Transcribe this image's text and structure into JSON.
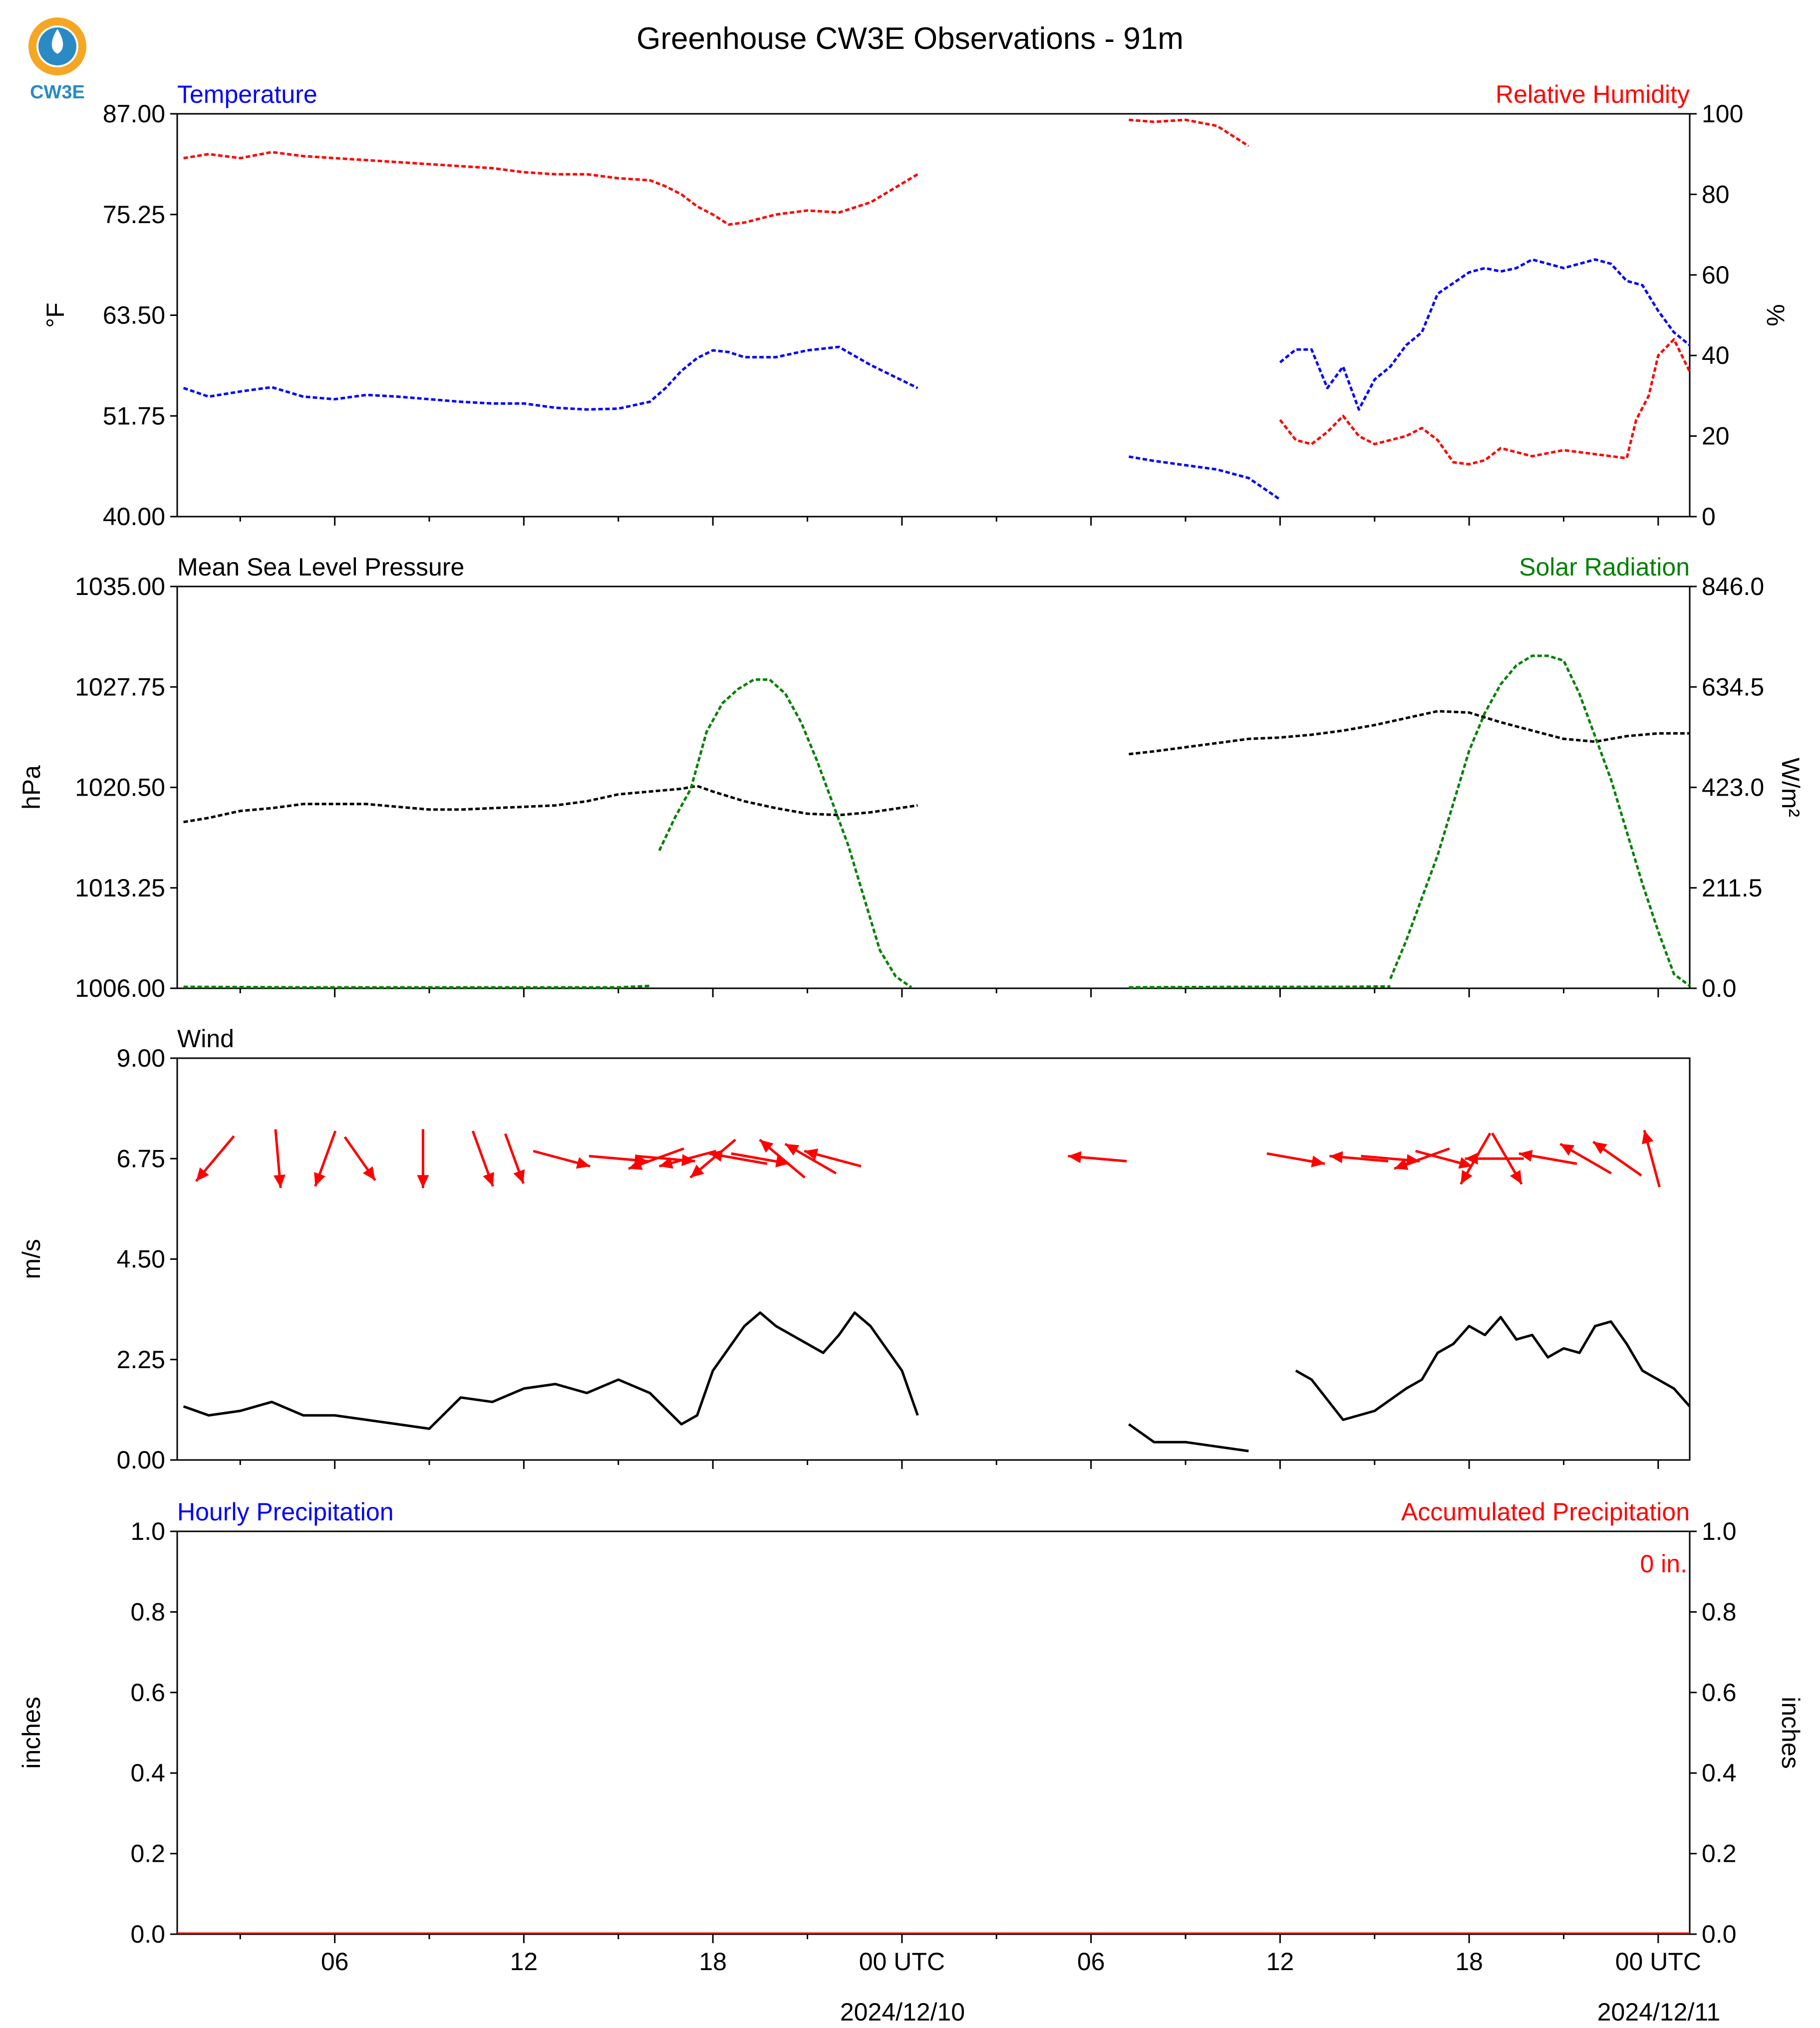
{
  "title": "Greenhouse CW3E Observations - 91m",
  "logo_text": "CW3E",
  "colors": {
    "blue": "#0000ff",
    "red": "#ff0000",
    "green": "#008000",
    "black": "#000000",
    "logo_orange": "#f5a623",
    "logo_blue": "#2a8ac4"
  },
  "x_axis": {
    "ticks": [
      "06",
      "12",
      "18",
      "00 UTC",
      "06",
      "12",
      "18",
      "00 UTC"
    ],
    "tick_hours": [
      6,
      12,
      18,
      24,
      30,
      36,
      42,
      48
    ],
    "minor_hour_step": 3,
    "dates": [
      "2024/12/10",
      "2024/12/11"
    ],
    "date_hours": [
      24,
      48
    ],
    "range_hours": [
      1,
      49
    ]
  },
  "chart_data": [
    {
      "type": "line",
      "panel": "temperature",
      "left_title": "Temperature",
      "right_title": "Relative Humidity",
      "left_ylabel": "°F",
      "right_ylabel": "%",
      "left_ylim": [
        40,
        87
      ],
      "left_ticks": [
        "87.00",
        "75.25",
        "63.50",
        "51.75",
        "40.00"
      ],
      "right_ylim": [
        0,
        100
      ],
      "right_ticks": [
        "100",
        "80",
        "60",
        "40",
        "20",
        "0"
      ],
      "series": [
        {
          "name": "Temperature",
          "axis": "left",
          "color": "#0000ff",
          "segments": [
            {
              "x": [
                1.2,
                2,
                3,
                4,
                5,
                6,
                7,
                8,
                9,
                10,
                11,
                12,
                13,
                14,
                15,
                16,
                16.5,
                17,
                17.5,
                18,
                18.5,
                19,
                20,
                21,
                22,
                23,
                24.5
              ],
              "y": [
                55.0,
                54.0,
                54.6,
                55.1,
                54.0,
                53.7,
                54.2,
                54.0,
                53.7,
                53.4,
                53.2,
                53.2,
                52.7,
                52.5,
                52.6,
                53.4,
                55.0,
                57.0,
                58.5,
                59.4,
                59.2,
                58.6,
                58.6,
                59.4,
                59.8,
                57.7,
                55.0
              ]
            },
            {
              "x": [
                31.2,
                32,
                33,
                34,
                35,
                36
              ],
              "y": [
                47.0,
                46.5,
                46.0,
                45.5,
                44.5,
                42.0
              ]
            },
            {
              "x": [
                36.0,
                36.5,
                37,
                37.5,
                38,
                38.5,
                39,
                39.5,
                40,
                40.5,
                41,
                42,
                42.5,
                43,
                43.5,
                44,
                45,
                45.5,
                46,
                46.5,
                47,
                47.5,
                48,
                48.5,
                49
              ],
              "y": [
                58.0,
                59.5,
                59.5,
                55.0,
                57.5,
                52.5,
                56.0,
                57.5,
                60.0,
                61.5,
                66.0,
                68.5,
                69.0,
                68.6,
                69.0,
                70.0,
                69.0,
                69.5,
                70.0,
                69.5,
                67.5,
                67.0,
                64.0,
                61.5,
                60.0
              ]
            }
          ]
        },
        {
          "name": "Relative Humidity",
          "axis": "right",
          "color": "#ff0000",
          "segments": [
            {
              "x": [
                1.2,
                2,
                3,
                4,
                5,
                6,
                7,
                8,
                9,
                10,
                11,
                12,
                13,
                14,
                15,
                16,
                16.5,
                17,
                17.5,
                18,
                18.5,
                19,
                20,
                21,
                22,
                23,
                24.5
              ],
              "y": [
                89.0,
                90.0,
                89.0,
                90.5,
                89.5,
                89.0,
                88.5,
                88.0,
                87.5,
                87.0,
                86.5,
                85.5,
                85.0,
                85.0,
                84.0,
                83.5,
                82.0,
                80.0,
                77.0,
                75.0,
                72.5,
                73.0,
                75.0,
                76.0,
                75.5,
                78.0,
                85.0
              ]
            },
            {
              "x": [
                31.2,
                32,
                33,
                34,
                35
              ],
              "y": [
                98.5,
                98.0,
                98.5,
                97.0,
                92.0
              ]
            },
            {
              "x": [
                36.0,
                36.5,
                37,
                37.5,
                38,
                38.5,
                39,
                40,
                40.5,
                41,
                41.5,
                42,
                42.5,
                43,
                44,
                45,
                46,
                47,
                47.3,
                47.7,
                48,
                48.5,
                49
              ],
              "y": [
                24.0,
                19.0,
                18.0,
                21.0,
                25.0,
                20.0,
                18.0,
                20.0,
                22.0,
                19.0,
                13.5,
                13.0,
                14.0,
                17.0,
                15.0,
                16.5,
                15.5,
                14.5,
                24.0,
                30.0,
                40.0,
                44.0,
                36.0
              ]
            }
          ]
        }
      ]
    },
    {
      "type": "line",
      "panel": "pressure",
      "left_title": "Mean Sea Level Pressure",
      "right_title": "Solar Radiation",
      "left_ylabel": "hPa",
      "right_ylabel": "W/m²",
      "left_ylim": [
        1006,
        1035
      ],
      "left_ticks": [
        "1035.00",
        "1027.75",
        "1020.50",
        "1013.25",
        "1006.00"
      ],
      "right_ylim": [
        0,
        846
      ],
      "right_ticks": [
        "846.0",
        "634.5",
        "423.0",
        "211.5",
        "0.0"
      ],
      "series": [
        {
          "name": "Mean Sea Level Pressure",
          "axis": "left",
          "color": "#000000",
          "segments": [
            {
              "x": [
                1.2,
                2,
                3,
                4,
                5,
                6,
                7,
                8,
                9,
                10,
                11,
                12,
                13,
                14,
                15,
                16,
                17,
                17.5,
                18,
                19,
                20,
                21,
                22,
                23,
                24.5
              ],
              "y": [
                1018.0,
                1018.3,
                1018.8,
                1019.0,
                1019.3,
                1019.3,
                1019.3,
                1019.1,
                1018.9,
                1018.9,
                1019.0,
                1019.1,
                1019.2,
                1019.5,
                1020.0,
                1020.2,
                1020.4,
                1020.6,
                1020.2,
                1019.5,
                1019.0,
                1018.6,
                1018.5,
                1018.7,
                1019.2
              ]
            },
            {
              "x": [
                31.2,
                32,
                33,
                34,
                35,
                36,
                37,
                38,
                39,
                40,
                41,
                42,
                43,
                44,
                45,
                46,
                47,
                48,
                49
              ],
              "y": [
                1022.9,
                1023.1,
                1023.4,
                1023.7,
                1024.0,
                1024.1,
                1024.3,
                1024.6,
                1025.0,
                1025.5,
                1026.0,
                1025.9,
                1025.2,
                1024.6,
                1024.0,
                1023.8,
                1024.2,
                1024.4,
                1024.4
              ]
            }
          ]
        },
        {
          "name": "Solar Radiation",
          "axis": "right",
          "color": "#008000",
          "segments": [
            {
              "x": [
                1.2,
                5,
                10,
                15,
                16.0
              ],
              "y": [
                3,
                2,
                2,
                2,
                5
              ]
            },
            {
              "x": [
                16.3,
                16.8,
                17.3,
                17.8,
                18.3,
                18.8,
                19.3,
                19.8,
                20.3,
                20.8,
                21.3,
                21.8,
                22.3,
                22.8,
                23.3,
                23.8,
                24.3
              ],
              "y": [
                290,
                360,
                420,
                540,
                600,
                630,
                650,
                650,
                620,
                560,
                480,
                390,
                300,
                190,
                80,
                25,
                2
              ]
            },
            {
              "x": [
                31.2,
                35,
                38,
                39.5
              ],
              "y": [
                2,
                3,
                3,
                4
              ]
            },
            {
              "x": [
                39.5,
                40,
                40.5,
                41,
                41.5,
                42,
                42.5,
                43,
                43.5,
                44,
                44.5,
                45,
                45.5,
                46,
                46.5,
                47,
                47.5,
                48,
                48.5,
                49
              ],
              "y": [
                20,
                100,
                190,
                280,
                390,
                500,
                580,
                640,
                680,
                700,
                700,
                690,
                620,
                530,
                440,
                330,
                220,
                120,
                30,
                5
              ]
            }
          ]
        }
      ]
    },
    {
      "type": "line",
      "panel": "wind",
      "left_title": "Wind",
      "left_ylabel": "m/s",
      "left_ylim": [
        0,
        9
      ],
      "left_ticks": [
        "9.00",
        "6.75",
        "4.50",
        "2.25",
        "0.00"
      ],
      "series": [
        {
          "name": "Wind Speed",
          "color": "#000000",
          "segments": [
            {
              "x": [
                1.2,
                2,
                3,
                4,
                5,
                6,
                7,
                8,
                9,
                10,
                11,
                12,
                13,
                14,
                15,
                16,
                17,
                17.5,
                18,
                18.5,
                19,
                19.5,
                20,
                20.5,
                21,
                21.5,
                22,
                22.5,
                23,
                23.5,
                24,
                24.5
              ],
              "y": [
                1.2,
                1.0,
                1.1,
                1.3,
                1.0,
                1.0,
                0.9,
                0.8,
                0.7,
                1.4,
                1.3,
                1.6,
                1.7,
                1.5,
                1.8,
                1.5,
                0.8,
                1.0,
                2.0,
                2.5,
                3.0,
                3.3,
                3.0,
                2.8,
                2.6,
                2.4,
                2.8,
                3.3,
                3.0,
                2.5,
                2.0,
                1.0
              ]
            },
            {
              "x": [
                31.2,
                32,
                33,
                34,
                35
              ],
              "y": [
                0.8,
                0.4,
                0.4,
                0.3,
                0.2
              ]
            },
            {
              "x": [
                36.5,
                37,
                38,
                39,
                40,
                40.5,
                41,
                41.5,
                42,
                42.5,
                43,
                43.5,
                44,
                44.5,
                45,
                45.5,
                46,
                46.5,
                47,
                47.5,
                48,
                48.5,
                49
              ],
              "y": [
                2.0,
                1.8,
                0.9,
                1.1,
                1.6,
                1.8,
                2.4,
                2.6,
                3.0,
                2.8,
                3.2,
                2.7,
                2.8,
                2.3,
                2.5,
                2.4,
                3.0,
                3.1,
                2.6,
                2.0,
                1.8,
                1.6,
                1.2
              ]
            }
          ]
        }
      ],
      "wind_arrows": [
        {
          "hour": 2.2,
          "dir": 220,
          "len": 1.0
        },
        {
          "hour": 4.2,
          "dir": 175,
          "len": 1.0
        },
        {
          "hour": 5.7,
          "dir": 200,
          "len": 1.0
        },
        {
          "hour": 6.8,
          "dir": 145,
          "len": 0.9
        },
        {
          "hour": 8.8,
          "dir": 180,
          "len": 1.0
        },
        {
          "hour": 10.7,
          "dir": 160,
          "len": 1.0
        },
        {
          "hour": 11.7,
          "dir": 160,
          "len": 0.9
        },
        {
          "hour": 13.2,
          "dir": 105,
          "len": 1.0
        },
        {
          "hour": 15.0,
          "dir": 95,
          "len": 1.0
        },
        {
          "hour": 16.2,
          "dir": 250,
          "len": 1.0
        },
        {
          "hour": 16.5,
          "dir": 95,
          "len": 1.0
        },
        {
          "hour": 17.2,
          "dir": 255,
          "len": 1.0
        },
        {
          "hour": 18.0,
          "dir": 230,
          "len": 1.0
        },
        {
          "hour": 18.8,
          "dir": 280,
          "len": 1.0
        },
        {
          "hour": 19.5,
          "dir": 100,
          "len": 1.0
        },
        {
          "hour": 20.2,
          "dir": 310,
          "len": 1.0
        },
        {
          "hour": 21.1,
          "dir": 300,
          "len": 1.0
        },
        {
          "hour": 21.8,
          "dir": 285,
          "len": 1.0
        },
        {
          "hour": 30.2,
          "dir": 275,
          "len": 1.0
        },
        {
          "hour": 36.5,
          "dir": 100,
          "len": 1.0
        },
        {
          "hour": 38.5,
          "dir": 275,
          "len": 1.0
        },
        {
          "hour": 39.5,
          "dir": 95,
          "len": 1.0
        },
        {
          "hour": 40.5,
          "dir": 250,
          "len": 1.0
        },
        {
          "hour": 41.2,
          "dir": 105,
          "len": 1.0
        },
        {
          "hour": 42.2,
          "dir": 210,
          "len": 1.0
        },
        {
          "hour": 42.8,
          "dir": 270,
          "len": 1.0
        },
        {
          "hour": 43.2,
          "dir": 150,
          "len": 1.0
        },
        {
          "hour": 44.5,
          "dir": 280,
          "len": 1.0
        },
        {
          "hour": 45.7,
          "dir": 300,
          "len": 1.0
        },
        {
          "hour": 46.7,
          "dir": 305,
          "len": 1.0
        },
        {
          "hour": 47.8,
          "dir": 345,
          "len": 1.0
        }
      ]
    },
    {
      "type": "bar",
      "panel": "precipitation",
      "left_title": "Hourly Precipitation",
      "right_title": "Accumulated Precipitation",
      "left_ylabel": "inches",
      "right_ylabel": "inches",
      "left_ylim": [
        0,
        1
      ],
      "right_ylim": [
        0,
        1
      ],
      "left_ticks": [
        "1.0",
        "0.8",
        "0.6",
        "0.4",
        "0.2",
        "0.0"
      ],
      "right_ticks": [
        "1.0",
        "0.8",
        "0.6",
        "0.4",
        "0.2",
        "0.0"
      ],
      "accumulated_label": "0 in.",
      "series": [
        {
          "name": "Hourly Precipitation",
          "color": "#0000ff",
          "values": []
        },
        {
          "name": "Accumulated Precipitation",
          "color": "#ff0000",
          "values": [
            0
          ]
        }
      ]
    }
  ]
}
